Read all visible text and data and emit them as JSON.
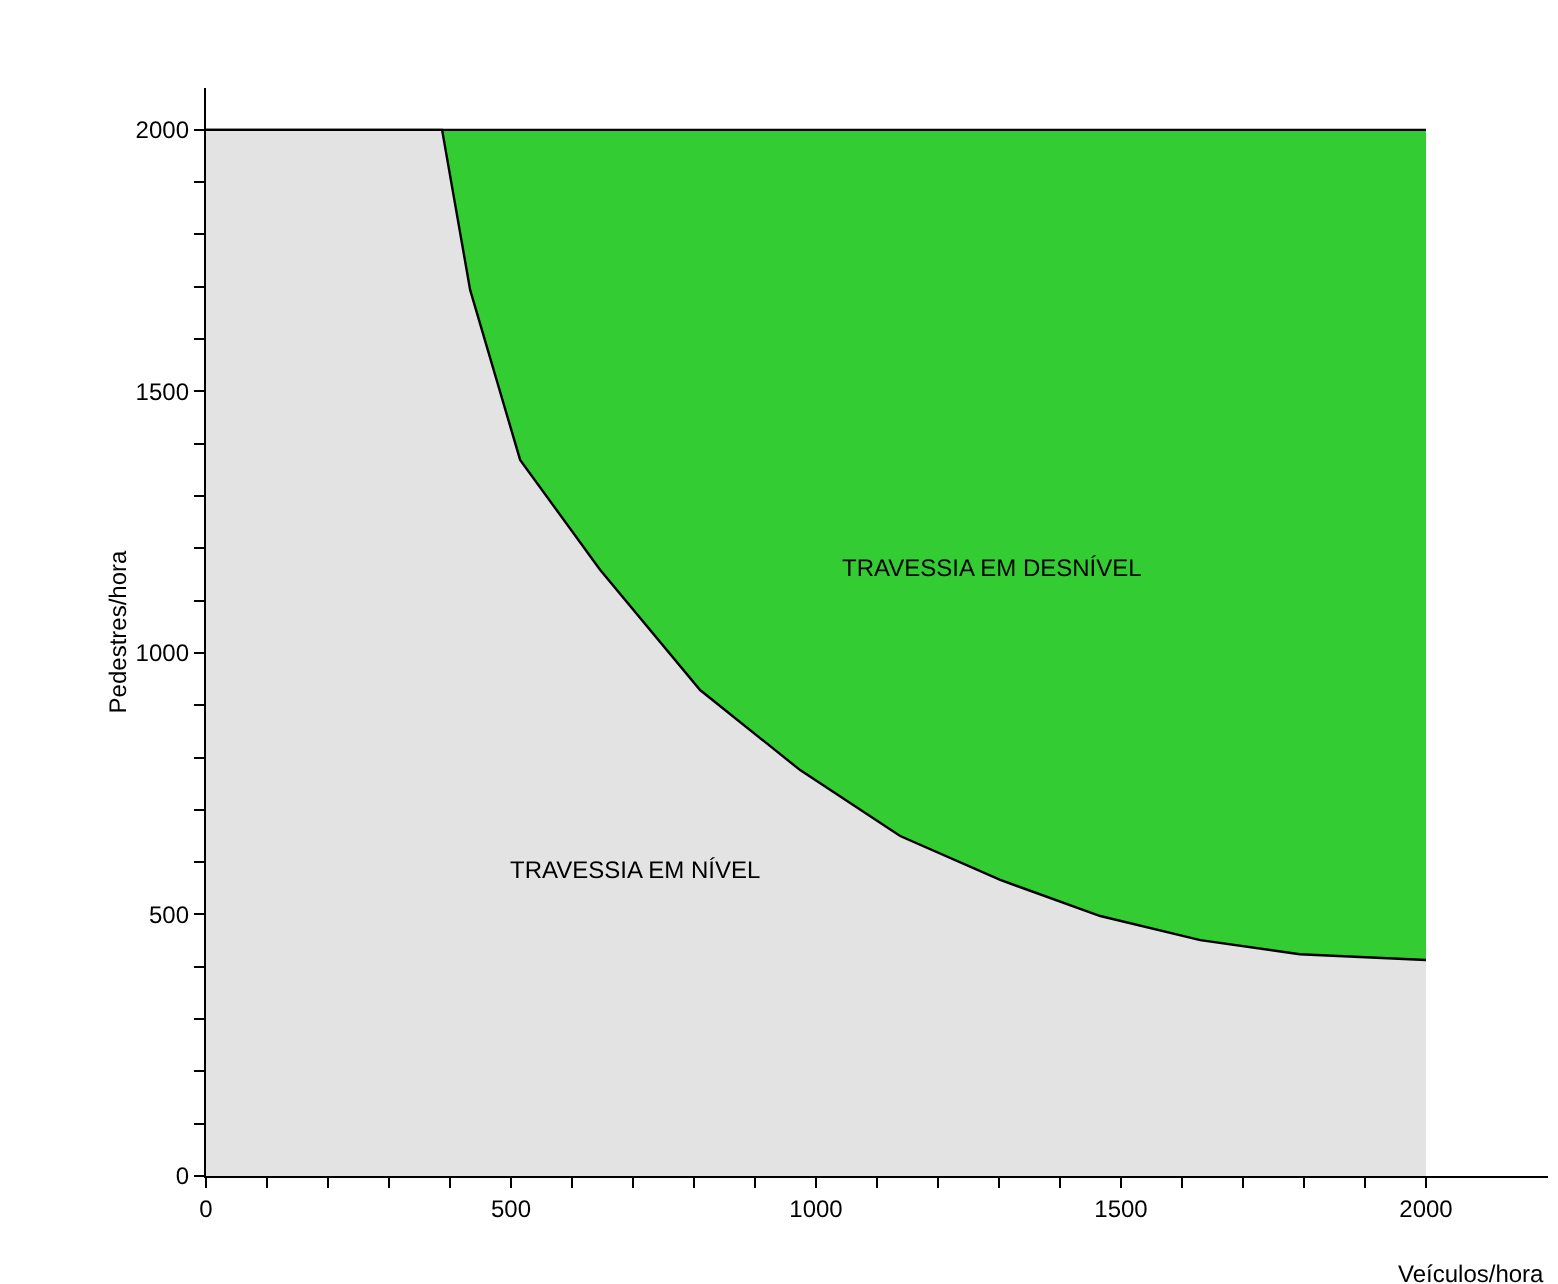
{
  "chart_data": {
    "type": "area",
    "stacked": true,
    "xlabel": "Veículos/hora",
    "ylabel": "Pedestres/hora",
    "x": [
      0,
      387,
      433,
      515,
      646,
      810,
      974,
      1138,
      1302,
      1466,
      1630,
      1793,
      2000
    ],
    "series": [
      {
        "name": "TRAVESSIA EM NÍVEL",
        "color": "#e3e3e3",
        "values": [
          2000,
          2000,
          1694,
          1369,
          1159,
          929,
          776,
          650,
          566,
          497,
          451,
          424,
          413
        ]
      },
      {
        "name": "TRAVESSIA EM DESNÍVEL",
        "color": "#33cc33",
        "values": [
          0,
          0,
          306,
          631,
          841,
          1071,
          1224,
          1350,
          1434,
          1503,
          1549,
          1576,
          1587
        ]
      }
    ],
    "xlim": [
      0,
      2200
    ],
    "ylim": [
      0,
      2080
    ],
    "xticks": [
      0,
      {
        "value": 100,
        "label": null
      },
      {
        "value": 200,
        "label": null
      },
      {
        "value": 300,
        "label": null
      },
      {
        "value": 400,
        "label": null
      },
      500,
      {
        "value": 600,
        "label": null
      },
      {
        "value": 700,
        "label": null
      },
      {
        "value": 800,
        "label": null
      },
      {
        "value": 900,
        "label": null
      },
      1000,
      {
        "value": 1100,
        "label": null
      },
      {
        "value": 1200,
        "label": null
      },
      {
        "value": 1300,
        "label": null
      },
      {
        "value": 1400,
        "label": null
      },
      1500,
      {
        "value": 1600,
        "label": null
      },
      {
        "value": 1700,
        "label": null
      },
      {
        "value": 1800,
        "label": null
      },
      {
        "value": 1900,
        "label": null
      },
      2000
    ],
    "yticks": [
      0,
      {
        "value": 100,
        "label": null
      },
      {
        "value": 200,
        "label": null
      },
      {
        "value": 300,
        "label": null
      },
      {
        "value": 400,
        "label": null
      },
      500,
      {
        "value": 600,
        "label": null
      },
      {
        "value": 700,
        "label": null
      },
      {
        "value": 800,
        "label": null
      },
      {
        "value": 900,
        "label": null
      },
      1000,
      {
        "value": 1100,
        "label": null
      },
      {
        "value": 1200,
        "label": null
      },
      {
        "value": 1300,
        "label": null
      },
      {
        "value": 1400,
        "label": null
      },
      1500,
      {
        "value": 1600,
        "label": null
      },
      {
        "value": 1700,
        "label": null
      },
      {
        "value": 1800,
        "label": null
      },
      {
        "value": 1900,
        "label": null
      },
      2000
    ],
    "grid": false,
    "legend": false
  }
}
